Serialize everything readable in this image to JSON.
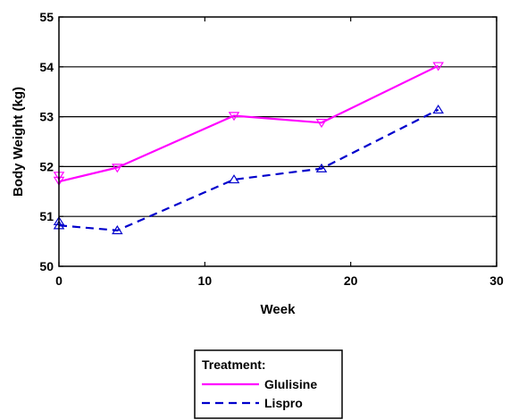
{
  "chart_data": {
    "type": "line",
    "title": "",
    "xlabel": "Week",
    "ylabel": "Body Weight (kg)",
    "xlim": [
      0,
      30
    ],
    "ylim": [
      50,
      55
    ],
    "xticks": [
      0,
      10,
      20,
      30
    ],
    "yticks": [
      50,
      51,
      52,
      53,
      54,
      55
    ],
    "grid": "horizontal",
    "legend": {
      "title": "Treatment:",
      "placement": "bottom"
    },
    "series": [
      {
        "name": "Glulisine",
        "color": "#ff00ff",
        "line_style": "solid",
        "marker": "triangle-down",
        "x": [
          0,
          4,
          12,
          18,
          26
        ],
        "y": [
          51.7,
          51.98,
          53.02,
          52.88,
          54.02
        ],
        "marker_x": [
          0,
          0,
          4,
          12,
          18,
          26
        ],
        "marker_y": [
          51.82,
          51.72,
          51.98,
          53.02,
          52.88,
          54.02
        ]
      },
      {
        "name": "Lispro",
        "color": "#0000cc",
        "line_style": "dashed",
        "marker": "triangle-up",
        "x": [
          0,
          4,
          12,
          18,
          26
        ],
        "y": [
          50.82,
          50.72,
          51.74,
          51.96,
          53.14
        ],
        "marker_x": [
          0,
          0,
          4,
          12,
          18,
          26
        ],
        "marker_y": [
          50.9,
          50.82,
          50.72,
          51.74,
          51.96,
          53.14
        ]
      }
    ]
  }
}
